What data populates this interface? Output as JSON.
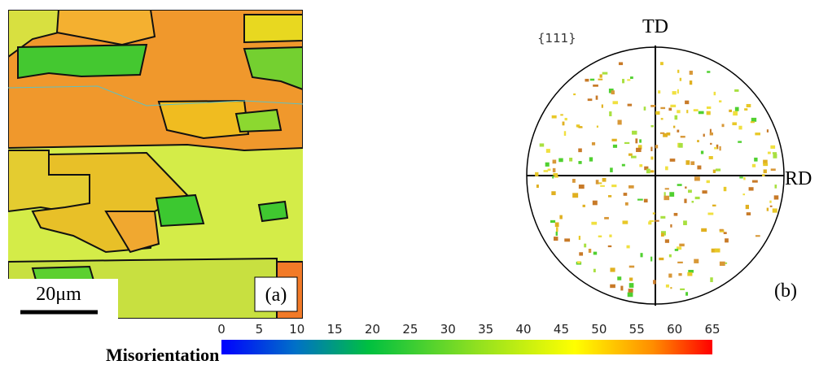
{
  "panel_a": {
    "scale_bar": "20μm",
    "label": "(a)"
  },
  "panel_b": {
    "pole_figure": "{111}",
    "top_axis": "TD",
    "right_axis": "RD",
    "label": "(b)"
  },
  "colorbar": {
    "label": "Misorientation",
    "range": [
      0,
      65
    ],
    "ticks": [
      0,
      5,
      10,
      15,
      20,
      25,
      30,
      35,
      40,
      45,
      50,
      55,
      60,
      65
    ]
  }
}
